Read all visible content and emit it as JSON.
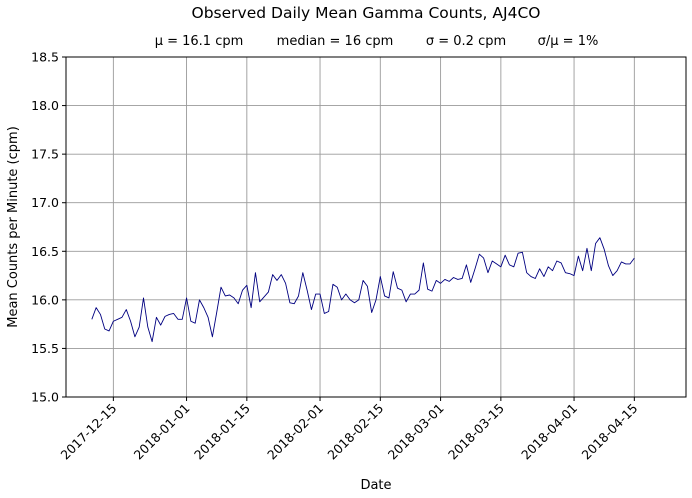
{
  "chart_data": {
    "type": "line",
    "title": "Observed Daily Mean Gamma Counts, AJ4CO",
    "subtitle": {
      "mean": "μ = 16.1 cpm",
      "median": "median = 16 cpm",
      "sigma": "σ = 0.2 cpm",
      "cv": "σ/μ = 1%"
    },
    "xlabel": "Date",
    "ylabel": "Mean Counts per Minute (cpm)",
    "xlim": [
      "2017-12-04",
      "2018-04-27"
    ],
    "ylim": [
      15.0,
      18.5
    ],
    "grid": true,
    "line_color": "#000080",
    "x_ticks": [
      "2017-12-15",
      "2018-01-01",
      "2018-01-15",
      "2018-02-01",
      "2018-02-15",
      "2018-03-01",
      "2018-03-15",
      "2018-04-01",
      "2018-04-15"
    ],
    "y_ticks": [
      "15.0",
      "15.5",
      "16.0",
      "16.5",
      "17.0",
      "17.5",
      "18.0",
      "18.5"
    ],
    "series": [
      {
        "x_start": "2017-12-10",
        "x_end": "2018-04-15",
        "values": [
          15.8,
          15.92,
          15.85,
          15.7,
          15.68,
          15.78,
          15.8,
          15.82,
          15.9,
          15.78,
          15.62,
          15.72,
          16.02,
          15.72,
          15.57,
          15.82,
          15.74,
          15.83,
          15.85,
          15.86,
          15.8,
          15.8,
          16.02,
          15.78,
          15.76,
          16.0,
          15.92,
          15.82,
          15.62,
          15.87,
          16.13,
          16.04,
          16.05,
          16.02,
          15.96,
          16.1,
          16.15,
          15.92,
          16.28,
          15.98,
          16.03,
          16.08,
          16.26,
          16.2,
          16.26,
          16.17,
          15.97,
          15.96,
          16.04,
          16.28,
          16.1,
          15.9,
          16.06,
          16.06,
          15.86,
          15.88,
          16.16,
          16.13,
          16.0,
          16.06,
          16.0,
          15.97,
          16.0,
          16.2,
          16.14,
          15.87,
          16.0,
          16.24,
          16.04,
          16.02,
          16.29,
          16.12,
          16.1,
          15.98,
          16.06,
          16.06,
          16.1,
          16.38,
          16.11,
          16.09,
          16.2,
          16.17,
          16.21,
          16.19,
          16.23,
          16.21,
          16.22,
          16.36,
          16.18,
          16.32,
          16.47,
          16.43,
          16.28,
          16.4,
          16.37,
          16.34,
          16.46,
          16.36,
          16.34,
          16.48,
          16.49,
          16.28,
          16.24,
          16.22,
          16.32,
          16.24,
          16.34,
          16.3,
          16.4,
          16.38,
          16.28,
          16.27,
          16.25,
          16.45,
          16.3,
          16.53,
          16.3,
          16.58,
          16.64,
          16.52,
          16.35,
          16.25,
          16.3,
          16.39,
          16.37,
          16.37,
          16.43
        ]
      }
    ]
  }
}
